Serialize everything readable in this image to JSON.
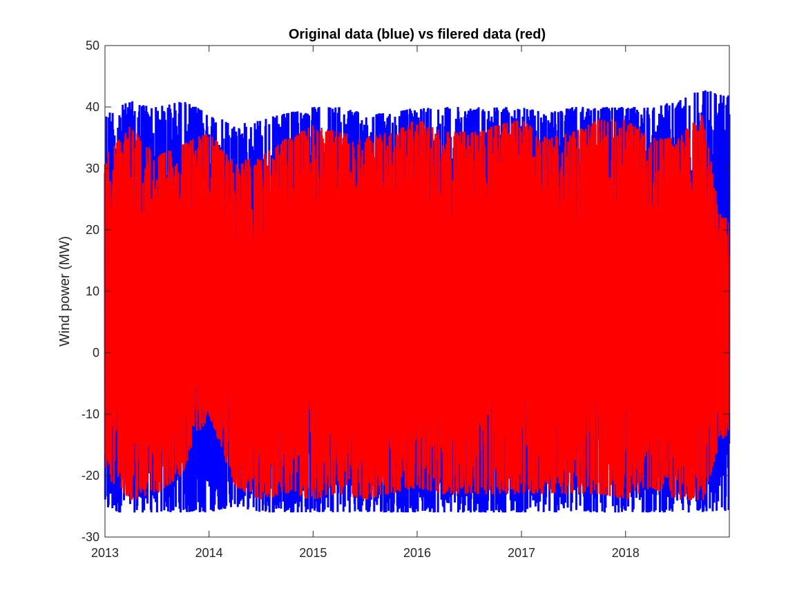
{
  "chart_data": {
    "type": "line",
    "title": "Original data (blue) vs filered data (red)",
    "xlabel": "",
    "ylabel": "Wind power (MW)",
    "xlim": [
      "2013-01-01",
      "2018-12-31"
    ],
    "ylim": [
      -30,
      50
    ],
    "x_ticks": [
      "2013",
      "2014",
      "2015",
      "2016",
      "2017",
      "2018"
    ],
    "y_ticks": [
      "-30",
      "-20",
      "-10",
      "0",
      "10",
      "20",
      "30",
      "40",
      "50"
    ],
    "grid": false,
    "legend": "none",
    "series": [
      {
        "color": "#0000ff",
        "x": [
          "2013-01",
          "2013-04",
          "2013-07",
          "2013-10",
          "2014-01",
          "2014-04",
          "2014-07",
          "2014-10",
          "2015-01",
          "2015-04",
          "2015-07",
          "2015-10",
          "2016-01",
          "2016-04",
          "2016-07",
          "2016-10",
          "2017-01",
          "2017-04",
          "2017-07",
          "2017-10",
          "2018-01",
          "2018-04",
          "2018-07",
          "2018-10",
          "2018-12"
        ],
        "upper": [
          39,
          41,
          40,
          41,
          39,
          37,
          38,
          39,
          40,
          40,
          39,
          39,
          40,
          40,
          40,
          40,
          40,
          39,
          40,
          40,
          40,
          40,
          41,
          43,
          42
        ],
        "lower": [
          -26,
          -26,
          -26,
          -26,
          -26,
          -25,
          -26,
          -26,
          -26,
          -26,
          -26,
          -26,
          -26,
          -26,
          -26,
          -26,
          -26,
          -26,
          -26,
          -26,
          -26,
          -26,
          -26,
          -26,
          -26
        ]
      },
      {
        "color": "#ff0000",
        "x": [
          "2013-01",
          "2013-04",
          "2013-07",
          "2013-10",
          "2014-01",
          "2014-04",
          "2014-07",
          "2014-10",
          "2015-01",
          "2015-04",
          "2015-07",
          "2015-10",
          "2016-01",
          "2016-04",
          "2016-07",
          "2016-10",
          "2017-01",
          "2017-04",
          "2017-07",
          "2017-10",
          "2018-01",
          "2018-04",
          "2018-07",
          "2018-10",
          "2018-12"
        ],
        "upper": [
          32,
          37,
          32,
          34,
          36,
          31,
          32,
          35,
          37,
          36,
          35,
          36,
          38,
          36,
          36,
          37,
          38,
          35,
          36,
          38,
          38,
          35,
          35,
          39,
          22
        ],
        "lower": [
          -20,
          -24,
          -23,
          -20,
          -10,
          -22,
          -24,
          -23,
          -24,
          -23,
          -24,
          -23,
          -22,
          -23,
          -23,
          -23,
          -23,
          -23,
          -23,
          -23,
          -24,
          -22,
          -24,
          -24,
          -14
        ]
      }
    ]
  }
}
